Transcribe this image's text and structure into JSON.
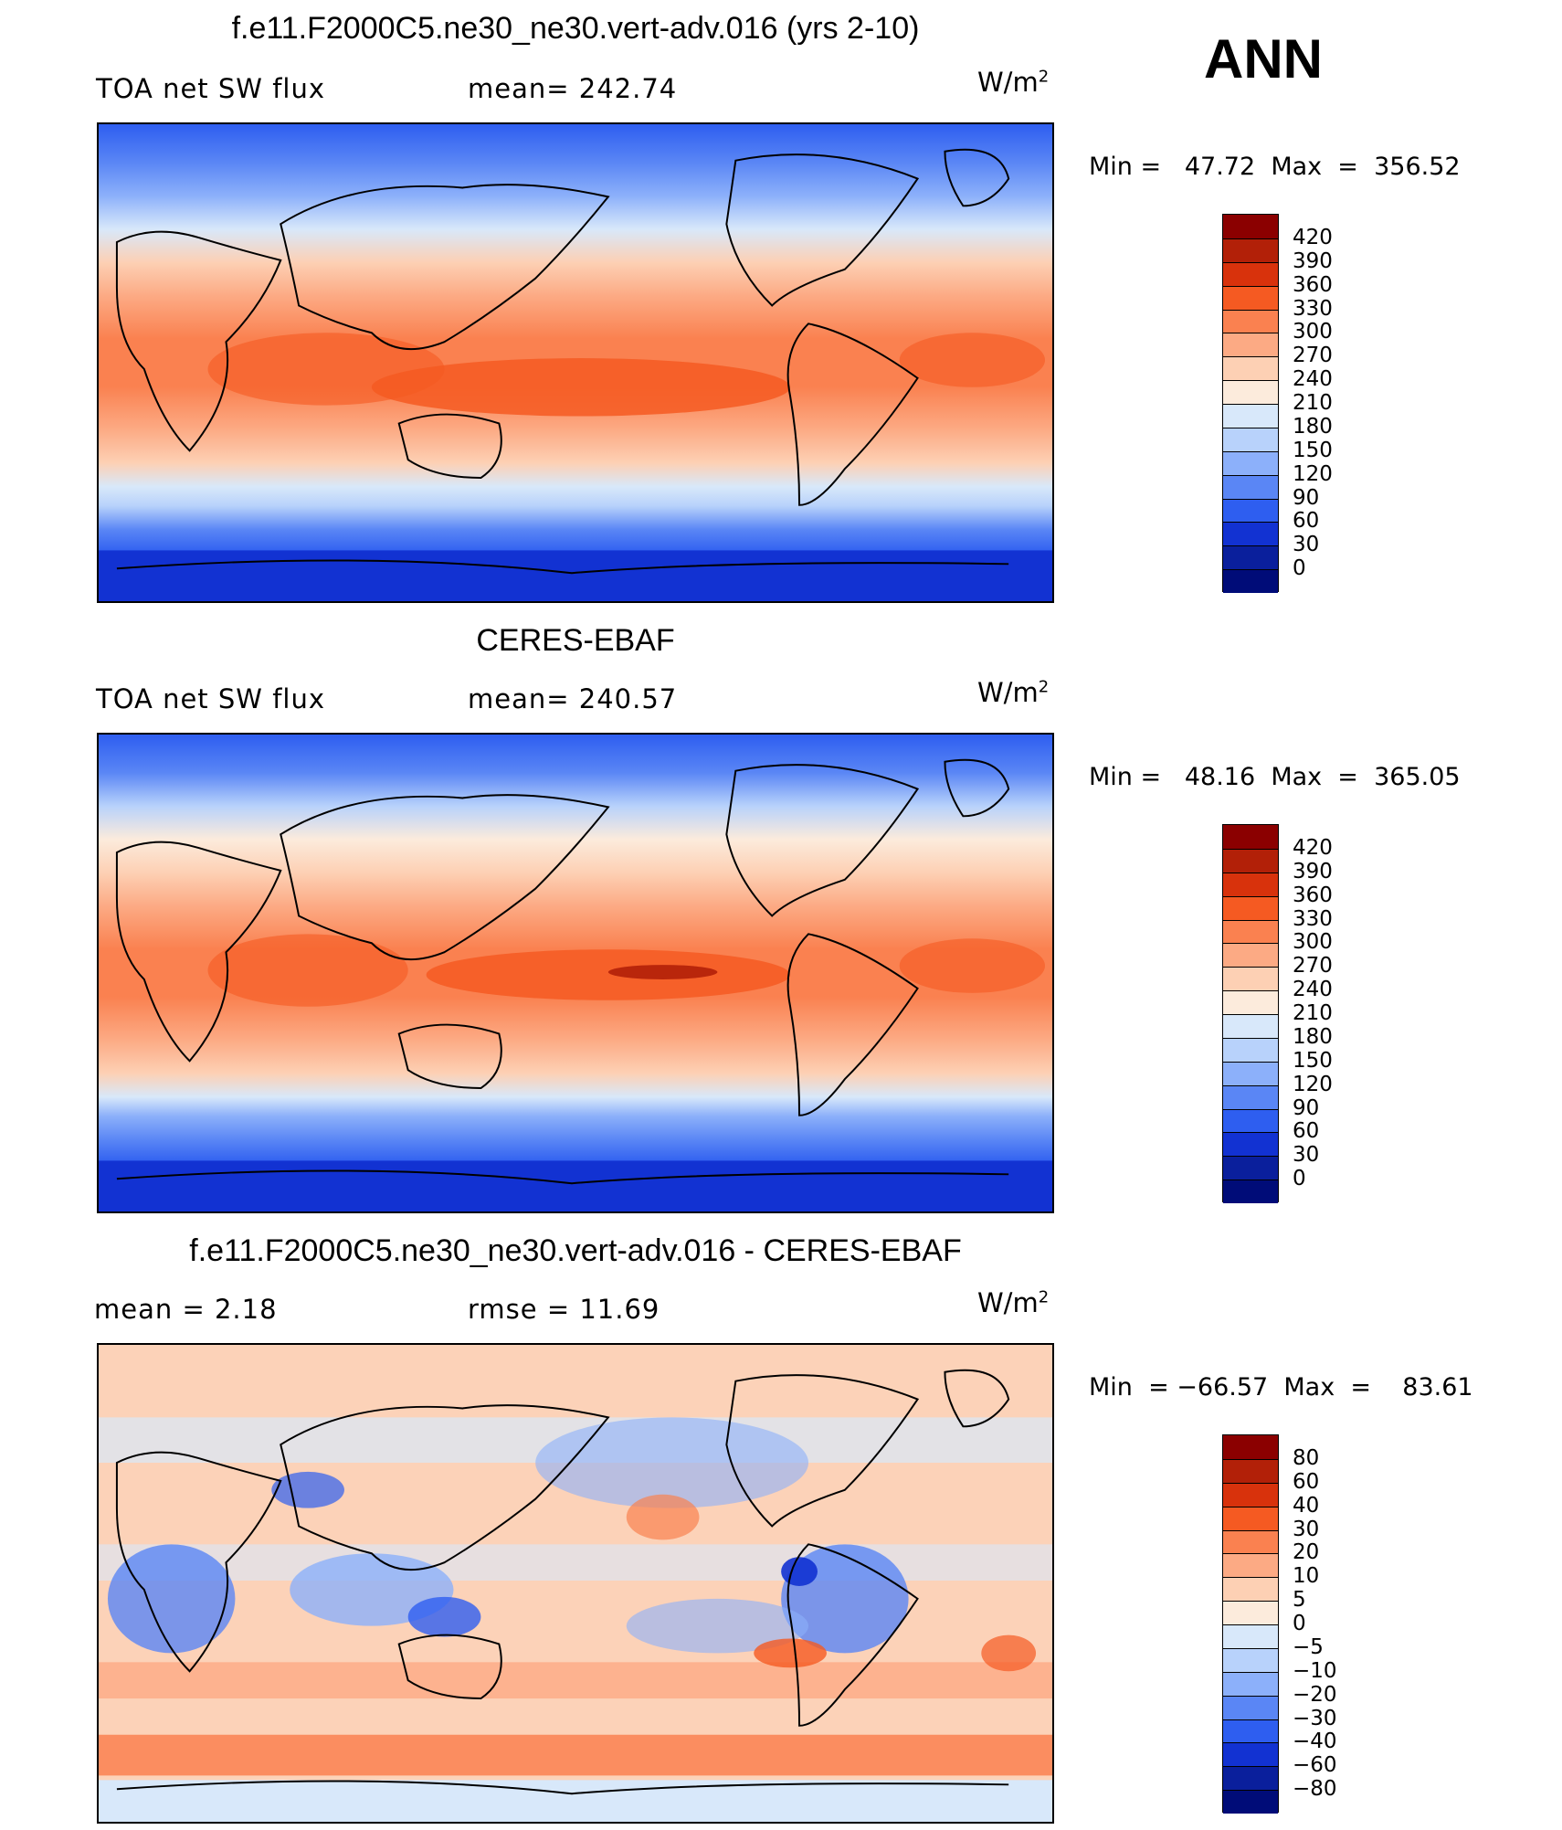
{
  "season": "ANN",
  "panels": [
    {
      "title": "f.e11.F2000C5.ne30_ne30.vert-adv.016 (yrs 2-10)",
      "left_label": "TOA net SW flux",
      "center_label": "mean= 242.74",
      "units": "W/m",
      "units_sup": "2",
      "minmax": "Min =   47.72  Max  =  356.52"
    },
    {
      "title": "CERES-EBAF",
      "left_label": "TOA net SW flux",
      "center_label": "mean= 240.57",
      "units": "W/m",
      "units_sup": "2",
      "minmax": "Min =   48.16  Max  =  365.05"
    },
    {
      "title": "f.e11.F2000C5.ne30_ne30.vert-adv.016 - CERES-EBAF",
      "left_label": "mean =     2.18",
      "center_label": "rmse =    11.69",
      "units": "W/m",
      "units_sup": "2",
      "minmax": "Min  = −66.57  Max  =    83.61"
    }
  ],
  "legend_flux": {
    "labels": [
      "420",
      "390",
      "360",
      "330",
      "300",
      "270",
      "240",
      "210",
      "180",
      "150",
      "120",
      "90",
      "60",
      "30",
      "0"
    ],
    "colors": [
      "#8b0000",
      "#b22008",
      "#d8320c",
      "#f55a22",
      "#fa8150",
      "#fcaa84",
      "#fdd0b4",
      "#fcebdc",
      "#d8e8fa",
      "#b8d2fb",
      "#8cb0fa",
      "#5a86f5",
      "#2e5ef0",
      "#1232d2",
      "#0a1f9c",
      "#000c78"
    ]
  },
  "legend_diff": {
    "labels": [
      "80",
      "60",
      "40",
      "30",
      "20",
      "10",
      "5",
      "0",
      "−5",
      "−10",
      "−20",
      "−30",
      "−40",
      "−60",
      "−80"
    ],
    "colors": [
      "#8b0000",
      "#b22008",
      "#d8320c",
      "#f55a22",
      "#fa8150",
      "#fcaa84",
      "#fdd0b4",
      "#fcebdc",
      "#d8e8fa",
      "#b8d2fb",
      "#8cb0fa",
      "#5a86f5",
      "#2e5ef0",
      "#1232d2",
      "#0a1f9c",
      "#000c78"
    ]
  }
}
